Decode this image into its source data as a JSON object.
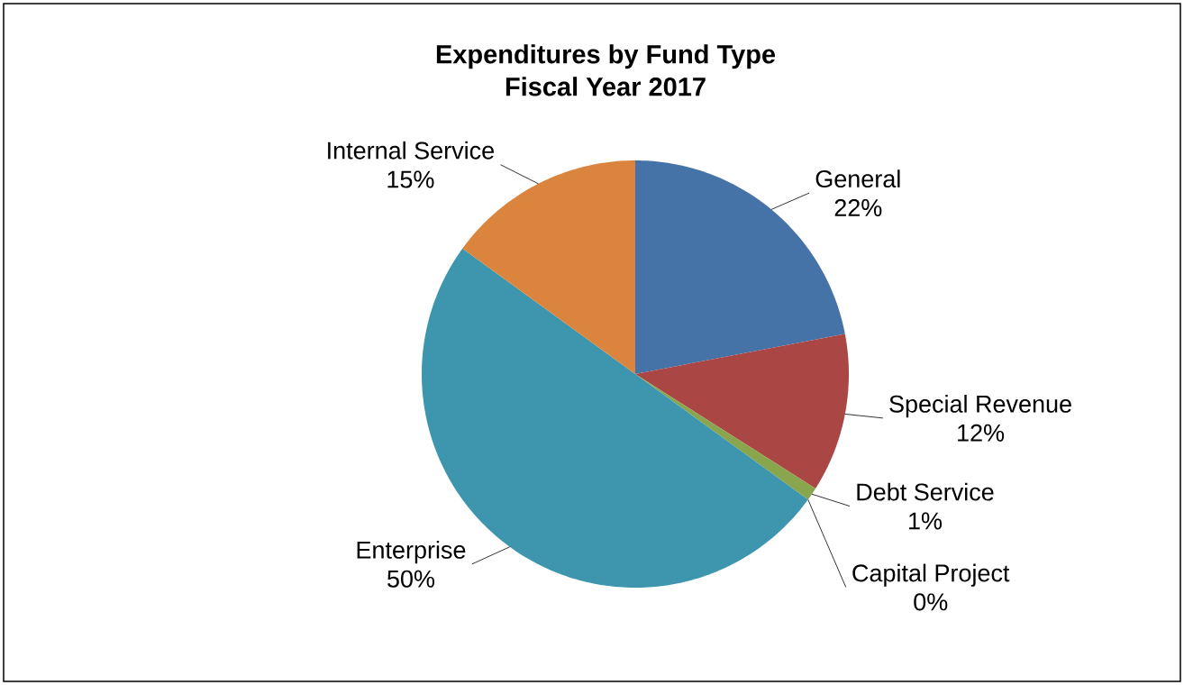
{
  "chart_data": {
    "type": "pie",
    "title": "Expenditures by Fund Type",
    "subtitle": "Fiscal Year 2017",
    "categories": [
      "General",
      "Special Revenue",
      "Debt Service",
      "Capital Project",
      "Enterprise",
      "Internal Service"
    ],
    "values": [
      22,
      12,
      1,
      0,
      50,
      15
    ],
    "value_labels": [
      "22%",
      "12%",
      "1%",
      "0%",
      "50%",
      "15%"
    ],
    "colors": [
      "#4572a7",
      "#aa4643",
      "#89a54e",
      "#80699b",
      "#3d96ae",
      "#db843d"
    ]
  }
}
